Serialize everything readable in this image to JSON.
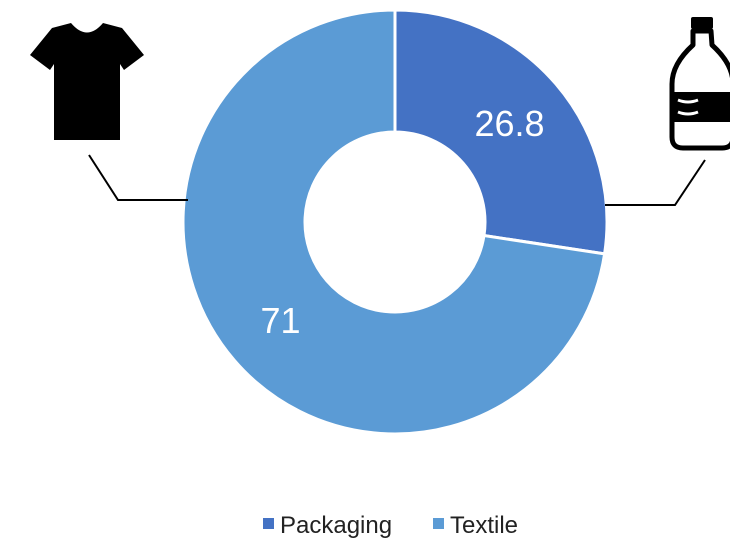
{
  "chart_data": {
    "type": "pie",
    "donut": true,
    "categories": [
      "Packaging",
      "Textile"
    ],
    "values": [
      26.8,
      71
    ],
    "data_labels": [
      "26.8",
      "71"
    ],
    "colors": [
      "#4472C4",
      "#5B9BD5"
    ],
    "legend": {
      "position": "bottom",
      "entries": [
        "Packaging",
        "Textile"
      ]
    },
    "title": ""
  },
  "icons": {
    "left": "t-shirt-icon",
    "right": "plastic-bottle-icon",
    "color": "#000000"
  }
}
